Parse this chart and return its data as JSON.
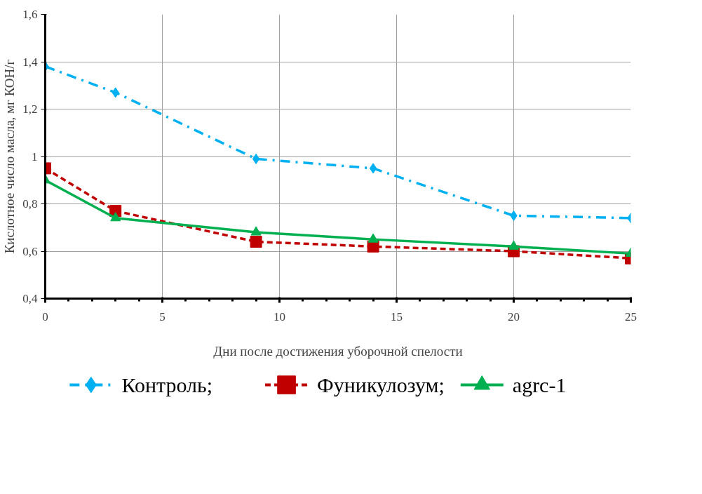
{
  "chart_data": {
    "type": "line",
    "xlabel": "Дни после достижения уборочной спелости",
    "ylabel": "Кислотное число масла, мг КОН/г",
    "x": [
      0,
      3,
      9,
      14,
      20,
      25
    ],
    "series": [
      {
        "name": "Контроль;",
        "color": "#00b0f0",
        "values": [
          1.38,
          1.27,
          0.99,
          0.95,
          0.75,
          0.74
        ],
        "marker": "diamond",
        "line_style": "dashdot"
      },
      {
        "name": "Фуникулозум;",
        "color": "#c00000",
        "values": [
          0.95,
          0.77,
          0.64,
          0.62,
          0.6,
          0.57
        ],
        "marker": "square",
        "line_style": "dashed"
      },
      {
        "name": "agrc-1",
        "color": "#00b050",
        "values": [
          0.9,
          0.74,
          0.68,
          0.65,
          0.62,
          0.59
        ],
        "marker": "triangle",
        "line_style": "solid"
      }
    ],
    "xlim": [
      0,
      25
    ],
    "xticks": [
      0,
      5,
      10,
      15,
      20,
      25
    ],
    "ylim": [
      0.4,
      1.6
    ],
    "yticks": [
      {
        "value": 0.4,
        "label": "0,4"
      },
      {
        "value": 0.6,
        "label": "0,6"
      },
      {
        "value": 0.8,
        "label": "0,8"
      },
      {
        "value": 1,
        "label": "1"
      },
      {
        "value": 1.2,
        "label": "1,2"
      },
      {
        "value": 1.4,
        "label": "1,4"
      },
      {
        "value": 1.6,
        "label": "1,6"
      }
    ],
    "grid": true,
    "legend": "bottom"
  }
}
